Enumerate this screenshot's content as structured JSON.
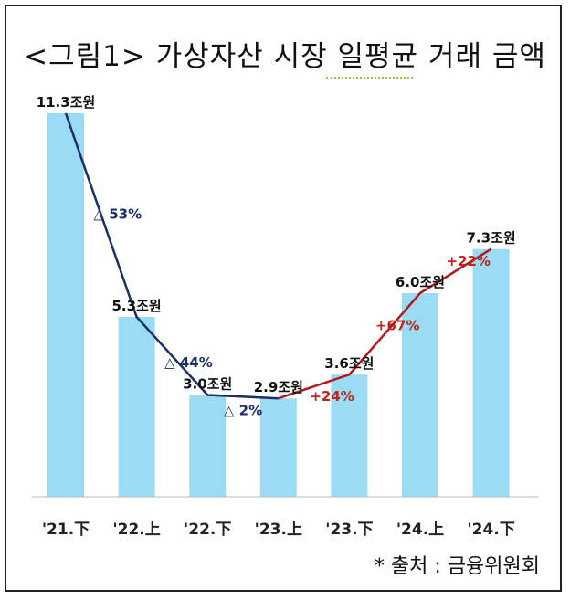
{
  "title": "<그림1> 가상자산 시장 일평균 거래 금액",
  "source": "* 출처 : 금융위원회",
  "colors": {
    "bar": "#9adcf6",
    "decline_line": "#1c2f6b",
    "decline_text": "#1c2f6b",
    "growth_line": "#b11a1a",
    "growth_text": "#c0241f"
  },
  "chart_data": {
    "type": "bar",
    "title": "<그림1> 가상자산 시장 일평균 거래 금액",
    "categories": [
      "'21.下",
      "'22.上",
      "'22.下",
      "'23.上",
      "'23.下",
      "'24.上",
      "'24.下"
    ],
    "values": [
      11.3,
      5.3,
      3.0,
      2.9,
      3.6,
      6.0,
      7.3
    ],
    "value_labels": [
      "11.3조원",
      "5.3조원",
      "3.0조원",
      "2.9조원",
      "3.6조원",
      "6.0조원",
      "7.3조원"
    ],
    "unit": "조원",
    "ylim": [
      0,
      11.3
    ],
    "grid": false,
    "legend": "none",
    "trend_line": {
      "values": [
        11.3,
        5.3,
        3.0,
        2.9,
        3.6,
        6.0,
        7.3
      ],
      "decline_segment_end_index": 3
    },
    "change_annotations": [
      {
        "between": [
          0,
          1
        ],
        "text": "△ 53%",
        "direction": "down"
      },
      {
        "between": [
          1,
          2
        ],
        "text": "△ 44%",
        "direction": "down"
      },
      {
        "between": [
          2,
          3
        ],
        "text": "△ 2%",
        "direction": "down"
      },
      {
        "between": [
          3,
          4
        ],
        "text": "+24%",
        "direction": "up"
      },
      {
        "between": [
          4,
          5
        ],
        "text": "+67%",
        "direction": "up"
      },
      {
        "between": [
          5,
          6
        ],
        "text": "+22%",
        "direction": "up"
      }
    ]
  }
}
